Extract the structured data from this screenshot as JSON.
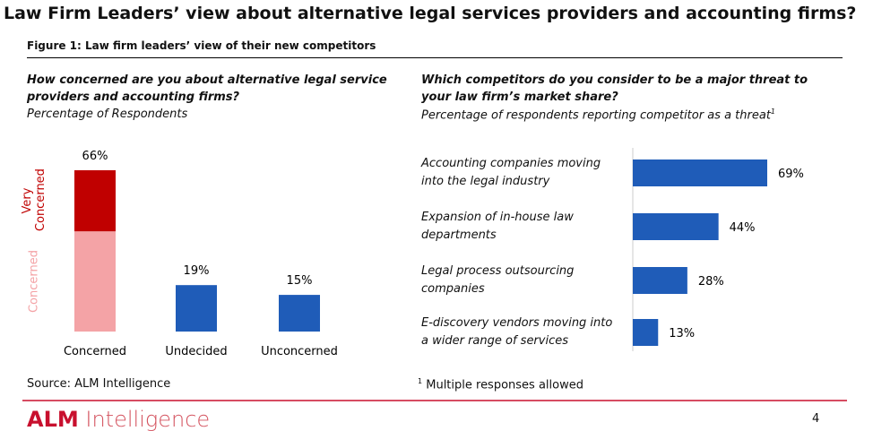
{
  "title": "Law Firm Leaders’ view about alternative legal services providers and accounting firms?",
  "figure_label": "Figure 1: Law firm leaders’ view of their new competitors",
  "chart_data": [
    {
      "type": "stacked-bar",
      "title": "How concerned are you about alternative legal service providers and accounting firms?",
      "subtitle": "Percentage of Respondents",
      "categories": [
        "Concerned",
        "Undecided",
        "Unconcerned"
      ],
      "values": [
        66,
        19,
        15
      ],
      "value_labels": [
        "66%",
        "19%",
        "15%"
      ],
      "color": "#1f5cb8",
      "segments": [
        [
          {
            "name": "Concerned",
            "value": 41,
            "color": "#f4a3a6"
          },
          {
            "name": "Very Concerned",
            "value": 25,
            "color": "#c00000"
          }
        ],
        null,
        null
      ]
    },
    {
      "type": "hbar",
      "title": "Which competitors do you consider to be a major threat to your law firm’s market share?",
      "subtitle": "Percentage of respondents reporting competitor as a threat",
      "subtitle_marker": "1",
      "categories": [
        "Accounting companies moving into the legal industry",
        "Expansion of in-house law departments",
        "Legal process outsourcing companies",
        "E-discovery vendors moving into a wider range of services"
      ],
      "values": [
        69,
        44,
        28,
        13
      ],
      "value_labels": [
        "69%",
        "44%",
        "28%",
        "13%"
      ],
      "color": "#1f5cb8"
    }
  ],
  "source": "Source: ALM Intelligence",
  "footnote": {
    "marker": "1",
    "text": "Multiple responses allowed"
  },
  "logo": {
    "brand": "ALM",
    "name": "Intelligence"
  },
  "page_number": "4"
}
